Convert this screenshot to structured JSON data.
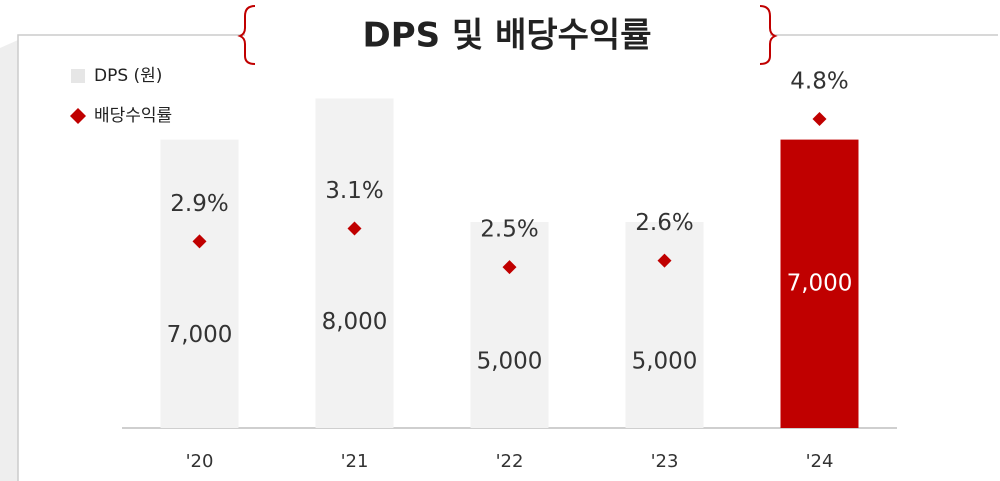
{
  "chart_data": {
    "type": "bar",
    "title": "DPS 및 배당수익률",
    "categories": [
      "'20",
      "'21",
      "'22",
      "'23",
      "'24"
    ],
    "series": [
      {
        "name": "DPS (원)",
        "type": "bar",
        "color": "#e6e6e6",
        "colors": [
          "#f2f2f2",
          "#f2f2f2",
          "#f2f2f2",
          "#f2f2f2",
          "#c00000"
        ],
        "values": [
          7000,
          8000,
          5000,
          5000,
          7000
        ],
        "value_labels": [
          "7,000",
          "8,000",
          "5,000",
          "5,000",
          "7,000"
        ]
      },
      {
        "name": "배당수익률",
        "type": "scatter",
        "axis": "y2",
        "color": "#c00000",
        "values": [
          2.9,
          3.1,
          2.5,
          2.6,
          4.8
        ],
        "value_labels": [
          "2.9%",
          "3.1%",
          "2.5%",
          "2.6%",
          "4.8%"
        ]
      }
    ],
    "ylim": [
      0,
      10000
    ],
    "y2lim": [
      0,
      6.4
    ],
    "legend": "top-left"
  }
}
